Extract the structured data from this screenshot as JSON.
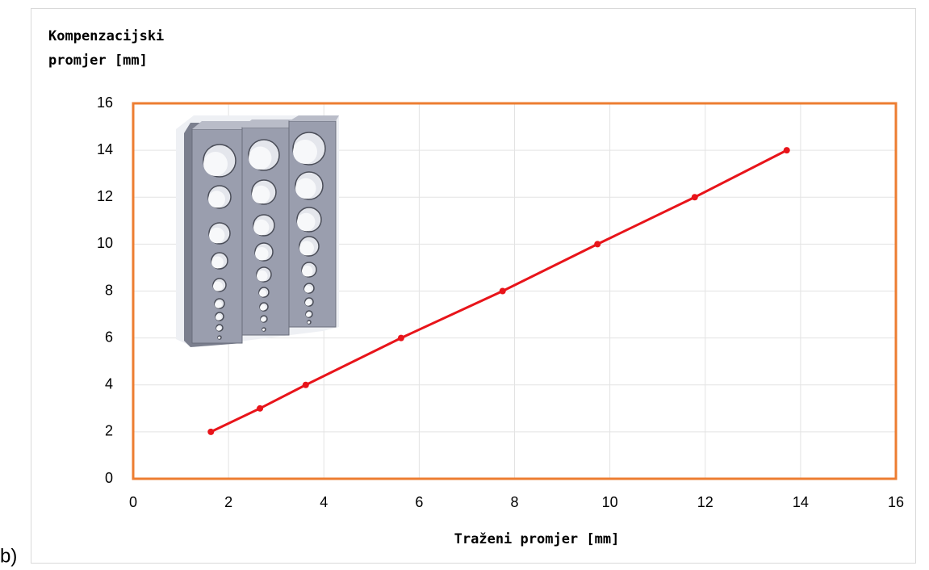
{
  "panel_label": "b)",
  "chart_data": {
    "type": "line",
    "ylabel_lines": [
      "Kompenzacijski",
      "promjer [mm]"
    ],
    "xlabel": "Traženi promjer [mm]",
    "x": [
      1.63,
      2.66,
      3.62,
      5.62,
      7.75,
      9.74,
      11.78,
      13.71
    ],
    "series": [
      {
        "color": "#e8141a",
        "values": [
          2,
          3,
          4,
          6,
          8,
          10,
          12,
          14
        ]
      }
    ],
    "xlim": [
      0,
      16
    ],
    "xticks": [
      0,
      2,
      4,
      6,
      8,
      10,
      12,
      14,
      16
    ],
    "ylim": [
      0,
      16
    ],
    "yticks": [
      0,
      2,
      4,
      6,
      8,
      10,
      12,
      14,
      16
    ],
    "grid": true,
    "frame_color": "#ed7d31"
  }
}
